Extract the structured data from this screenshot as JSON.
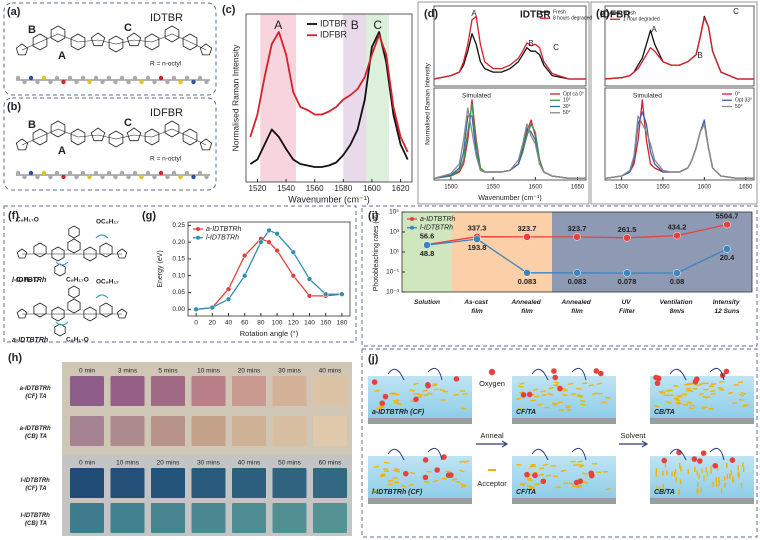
{
  "labels": {
    "a": "(a)",
    "b": "(b)",
    "c": "(c)",
    "d": "(d)",
    "e": "(e)",
    "f": "(f)",
    "g": "(g)",
    "h": "(h)",
    "i": "(i)",
    "j": "(j)"
  },
  "molecule_a": {
    "name": "IDTBR",
    "units": [
      "B",
      "A",
      "C"
    ],
    "substituent": "R = n-octyl"
  },
  "molecule_b": {
    "name": "IDFBR",
    "units": [
      "B",
      "A",
      "C"
    ],
    "substituent": "R = n-octyl"
  },
  "molecule_f": [
    {
      "name": "l-IDTBTRh",
      "chains": [
        "C₈H₁₇O",
        "OC₈H₁₇",
        "C₈H₁₇O"
      ]
    },
    {
      "name": "a-IDTBTRh",
      "chains": [
        "C₈H₁₇O",
        "OC₈H₁₇",
        "C₈H₁₇O"
      ]
    }
  ],
  "chart_data": [
    {
      "type": "line",
      "xlabel": "Wavenumber (cm⁻¹)",
      "ylabel": "Normalised Raman Intensity",
      "x": [
        1515,
        1520,
        1525,
        1530,
        1535,
        1540,
        1545,
        1550,
        1555,
        1560,
        1565,
        1570,
        1575,
        1580,
        1585,
        1590,
        1595,
        1600,
        1605,
        1610,
        1615,
        1620,
        1625
      ],
      "xlim": [
        1512,
        1628
      ],
      "xticks": [
        1520,
        1540,
        1560,
        1580,
        1600,
        1620
      ],
      "ylim": [
        0,
        1.12
      ],
      "legend": "top-center",
      "regions": [
        {
          "label": "A",
          "range": [
            1522,
            1547
          ],
          "color": "#f6c9d6"
        },
        {
          "label": "B",
          "range": [
            1580,
            1596
          ],
          "color": "#e2cfe6"
        },
        {
          "label": "C",
          "range": [
            1596,
            1612
          ],
          "color": "#d3ecd3"
        }
      ],
      "series": [
        {
          "name": "IDTBR",
          "color": "#111111",
          "values": [
            0.12,
            0.15,
            0.25,
            0.35,
            0.3,
            0.22,
            0.15,
            0.12,
            0.11,
            0.1,
            0.1,
            0.11,
            0.13,
            0.18,
            0.25,
            0.35,
            0.55,
            0.9,
            1.0,
            0.8,
            0.45,
            0.25,
            0.15
          ]
        },
        {
          "name": "IDFBR",
          "color": "#d6202b",
          "values": [
            0.3,
            0.45,
            0.7,
            0.92,
            1.0,
            0.85,
            0.6,
            0.5,
            0.48,
            0.45,
            0.45,
            0.47,
            0.5,
            0.55,
            0.58,
            0.62,
            0.7,
            0.85,
            0.98,
            0.85,
            0.5,
            0.3,
            0.2
          ]
        }
      ]
    },
    {
      "type": "line",
      "title": "IDTBR",
      "ylabel": "Normalised Raman Intensity",
      "peak_labels": [
        "A",
        "B",
        "C"
      ],
      "x": [
        1480,
        1500,
        1510,
        1515,
        1520,
        1525,
        1530,
        1535,
        1540,
        1550,
        1560,
        1570,
        1580,
        1585,
        1590,
        1595,
        1600,
        1605,
        1610,
        1620,
        1640,
        1660
      ],
      "xlim": [
        1480,
        1660
      ],
      "ylim": [
        0,
        1.15
      ],
      "legend": "top-right",
      "series": [
        {
          "name": "Fresh",
          "color": "#111111",
          "values": [
            0.1,
            0.15,
            0.2,
            0.3,
            0.5,
            0.75,
            0.6,
            0.35,
            0.25,
            0.2,
            0.2,
            0.25,
            0.35,
            0.45,
            0.55,
            0.5,
            0.5,
            0.45,
            0.3,
            0.15,
            0.1,
            0.1
          ]
        },
        {
          "name": "8 hours degraded",
          "color": "#d6202b",
          "values": [
            0.1,
            0.15,
            0.2,
            0.35,
            0.6,
            0.95,
            1.0,
            0.6,
            0.35,
            0.25,
            0.25,
            0.3,
            0.4,
            0.5,
            0.62,
            0.58,
            0.6,
            0.55,
            0.35,
            0.18,
            0.1,
            0.1
          ]
        }
      ]
    },
    {
      "type": "line",
      "note": "Simulated",
      "xlabel": "Wavenumber (cm⁻¹)",
      "x": [
        1480,
        1500,
        1510,
        1515,
        1520,
        1525,
        1530,
        1535,
        1540,
        1550,
        1560,
        1570,
        1580,
        1585,
        1590,
        1595,
        1600,
        1605,
        1610,
        1620,
        1640,
        1660
      ],
      "xlim": [
        1480,
        1660
      ],
      "xticks": [
        1500,
        1550,
        1600,
        1650
      ],
      "ylim": [
        0,
        1.15
      ],
      "legend": "top-right",
      "series": [
        {
          "name": "Opt ca 0°",
          "color": "#d6202b",
          "values": [
            0.02,
            0.05,
            0.1,
            0.2,
            0.5,
            1.0,
            0.5,
            0.15,
            0.1,
            0.1,
            0.1,
            0.12,
            0.2,
            0.35,
            0.6,
            0.75,
            0.55,
            0.25,
            0.1,
            0.05,
            0.02,
            0.02
          ]
        },
        {
          "name": "10°",
          "color": "#3c9a4a",
          "values": [
            0.02,
            0.05,
            0.12,
            0.25,
            0.6,
            0.95,
            0.45,
            0.15,
            0.1,
            0.1,
            0.1,
            0.12,
            0.2,
            0.35,
            0.55,
            0.7,
            0.6,
            0.25,
            0.1,
            0.05,
            0.02,
            0.02
          ]
        },
        {
          "name": "30°",
          "color": "#3a62b0",
          "values": [
            0.02,
            0.06,
            0.15,
            0.35,
            0.8,
            0.8,
            0.35,
            0.12,
            0.1,
            0.1,
            0.1,
            0.12,
            0.2,
            0.4,
            0.65,
            0.6,
            0.5,
            0.2,
            0.1,
            0.05,
            0.02,
            0.02
          ]
        },
        {
          "name": "50°",
          "color": "#8a8a8a",
          "values": [
            0.02,
            0.08,
            0.2,
            0.5,
            0.9,
            0.6,
            0.3,
            0.12,
            0.1,
            0.1,
            0.1,
            0.12,
            0.25,
            0.45,
            0.7,
            0.55,
            0.45,
            0.2,
            0.1,
            0.05,
            0.02,
            0.02
          ]
        }
      ]
    },
    {
      "type": "line",
      "title": "IDFBR",
      "peak_labels": [
        "A",
        "B",
        "C"
      ],
      "x": [
        1480,
        1500,
        1510,
        1515,
        1520,
        1525,
        1530,
        1535,
        1540,
        1550,
        1560,
        1570,
        1580,
        1585,
        1590,
        1595,
        1600,
        1605,
        1610,
        1620,
        1640,
        1660
      ],
      "xlim": [
        1480,
        1660
      ],
      "ylim": [
        0,
        1.15
      ],
      "legend": "top-left",
      "series": [
        {
          "name": "Fresh",
          "color": "#111111",
          "values": [
            0.1,
            0.12,
            0.15,
            0.2,
            0.3,
            0.4,
            0.6,
            0.8,
            0.6,
            0.35,
            0.3,
            0.3,
            0.35,
            0.4,
            0.45,
            0.7,
            1.0,
            0.85,
            0.5,
            0.2,
            0.1,
            0.1
          ]
        },
        {
          "name": "1 hour degraded",
          "color": "#d6202b",
          "values": [
            0.1,
            0.12,
            0.15,
            0.2,
            0.25,
            0.35,
            0.45,
            0.55,
            0.5,
            0.35,
            0.3,
            0.3,
            0.35,
            0.4,
            0.45,
            0.7,
            0.98,
            0.85,
            0.5,
            0.2,
            0.1,
            0.1
          ]
        }
      ]
    },
    {
      "type": "line",
      "note": "Simulated",
      "x": [
        1480,
        1500,
        1510,
        1515,
        1520,
        1525,
        1530,
        1535,
        1540,
        1550,
        1560,
        1570,
        1580,
        1585,
        1590,
        1595,
        1600,
        1605,
        1610,
        1620,
        1640,
        1660
      ],
      "xlim": [
        1480,
        1660
      ],
      "xticks": [
        1500,
        1550,
        1600,
        1650
      ],
      "ylim": [
        0,
        1.15
      ],
      "legend": "top-right",
      "series": [
        {
          "name": "0°",
          "color": "#d6202b",
          "values": [
            0.02,
            0.05,
            0.1,
            0.2,
            0.5,
            1.0,
            0.5,
            0.2,
            0.15,
            0.1,
            0.1,
            0.1,
            0.15,
            0.25,
            0.4,
            0.6,
            0.7,
            0.4,
            0.15,
            0.05,
            0.02,
            0.02
          ]
        },
        {
          "name": "Opt 33°",
          "color": "#3a62b0",
          "values": [
            0.02,
            0.05,
            0.1,
            0.25,
            0.7,
            0.85,
            0.7,
            0.35,
            0.2,
            0.1,
            0.1,
            0.1,
            0.15,
            0.25,
            0.4,
            0.6,
            0.75,
            0.4,
            0.15,
            0.05,
            0.02,
            0.02
          ]
        },
        {
          "name": "50°",
          "color": "#8a8a8a",
          "values": [
            0.02,
            0.05,
            0.12,
            0.3,
            0.8,
            0.7,
            0.6,
            0.45,
            0.25,
            0.12,
            0.1,
            0.1,
            0.15,
            0.25,
            0.4,
            0.6,
            0.7,
            0.4,
            0.15,
            0.05,
            0.02,
            0.02
          ]
        }
      ]
    },
    {
      "type": "line",
      "xlabel": "Rotation angle (°)",
      "ylabel": "Energy (eV)",
      "markers": true,
      "x": [
        0,
        20,
        40,
        60,
        80,
        90,
        100,
        120,
        140,
        160,
        180
      ],
      "xlim": [
        -10,
        190
      ],
      "xticks": [
        0,
        20,
        40,
        60,
        80,
        100,
        120,
        140,
        160,
        180
      ],
      "ylim": [
        -0.02,
        0.26
      ],
      "yticks": [
        {
          "value": 0,
          "label": "0.00"
        },
        0.05,
        {
          "value": 0.1,
          "label": "0.10"
        },
        0.15,
        {
          "value": 0.2,
          "label": "0.20"
        },
        0.25
      ],
      "legend": "top-left",
      "series": [
        {
          "name": "a-IDTBTRh",
          "color": "#e0403a",
          "values": [
            0,
            0.005,
            0.06,
            0.16,
            0.21,
            0.2,
            0.175,
            0.1,
            0.04,
            0.04,
            0.045
          ]
        },
        {
          "name": "l-IDTBTRh",
          "color": "#2f8fb0",
          "values": [
            0,
            0.005,
            0.03,
            0.1,
            0.2,
            0.235,
            0.225,
            0.17,
            0.09,
            0.045,
            0.045
          ]
        }
      ]
    },
    {
      "type": "line",
      "ylabel": "Photobleaching rates (%)",
      "markers": true,
      "log_y": true,
      "categories": [
        "Solution",
        "As-cast film",
        "Annealed film",
        "Annealed film",
        "UV Filter",
        "Ventilation 8m/s",
        "Intensity 12 Suns"
      ],
      "category_colors": [
        "#cfe6bf",
        "#fbcfa7",
        "#fbcfa7",
        "#8e99b4",
        "#8e99b4",
        "#8e99b4",
        "#8e99b4"
      ],
      "ylim": [
        0.001,
        100000
      ],
      "yticks": [
        {
          "value": 0.001,
          "label": "10⁻³"
        },
        {
          "value": 0.1,
          "label": "10⁻¹"
        },
        {
          "value": 10,
          "label": "10¹"
        },
        {
          "value": 1000,
          "label": "10³"
        },
        {
          "value": 100000,
          "label": "10⁵"
        }
      ],
      "legend": "top-left",
      "series": [
        {
          "name": "a-IDTBTRh",
          "color": "#e8413c",
          "values": [
            56.6,
            337.3,
            323.7,
            323.7,
            261.5,
            434.2,
            5504.7
          ]
        },
        {
          "name": "l-IDTBTRh",
          "color": "#3a86c0",
          "values": [
            48.8,
            193.8,
            0.083,
            0.083,
            0.078,
            0.08,
            20.4
          ]
        }
      ]
    }
  ],
  "photo_h": {
    "rows": [
      {
        "label": "a-IDTBTRh (CF) TA",
        "times": [
          "0 min",
          "3 mins",
          "5 mins",
          "10 mins",
          "20 mins",
          "30 mins",
          "40 mins"
        ]
      },
      {
        "label": "a-IDTBTRh (CB) TA"
      },
      {
        "label": "l-IDTBTRh (CF) TA",
        "times": [
          "0 min",
          "10 mins",
          "20 mins",
          "30 mins",
          "40 mins",
          "50 mins",
          "60 mins"
        ]
      },
      {
        "label": "l-IDTBTRh (CB) TA"
      }
    ]
  },
  "diagram_j": {
    "top_row": [
      "a-IDTBTRh (CF)",
      "CF/TA",
      "CB/TA"
    ],
    "bottom_row": [
      "l-IDTBTRh (CF)",
      "CF/TA",
      "CB/TA"
    ],
    "oxygen": "Oxygen",
    "anneal": "Anneal",
    "solvent": "Solvent",
    "acceptor": "Acceptor"
  }
}
